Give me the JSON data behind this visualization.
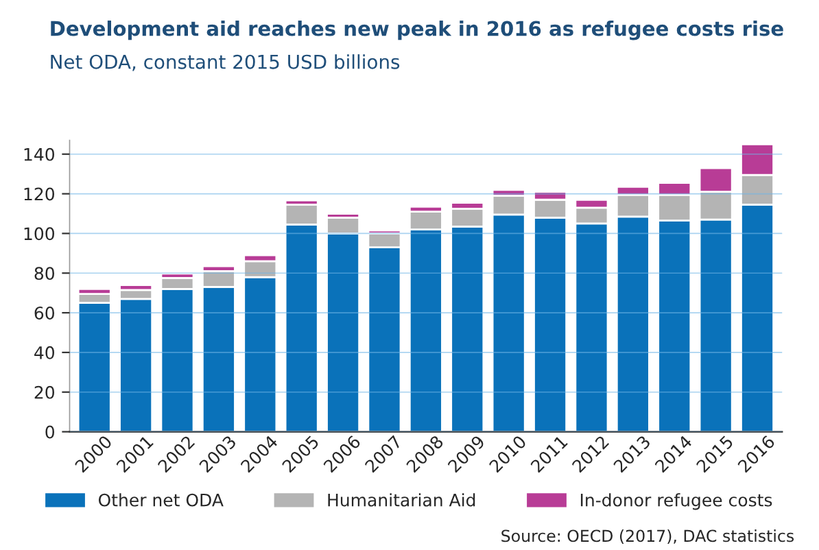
{
  "chart_data": {
    "type": "bar",
    "title": "Development aid reaches new peak in 2016 as refugee costs rise",
    "subtitle": "Net ODA, constant 2015 USD billions",
    "categories": [
      "2000",
      "2001",
      "2002",
      "2003",
      "2004",
      "2005",
      "2006",
      "2007",
      "2008",
      "2009",
      "2010",
      "2011",
      "2012",
      "2013",
      "2014",
      "2015",
      "2016"
    ],
    "stacked": true,
    "series": [
      {
        "name": "Other net ODA",
        "color": "#0a72ba",
        "values": [
          65,
          67,
          72,
          73,
          78,
          104.5,
          100,
          93,
          102,
          103.5,
          109.5,
          108,
          105,
          108.5,
          106.5,
          107,
          114.5
        ]
      },
      {
        "name": "Humanitarian Aid",
        "color": "#b4b4b4",
        "values": [
          4.5,
          4.5,
          5.5,
          8,
          8,
          10,
          8,
          7,
          9,
          9,
          9.5,
          9,
          8,
          11,
          13,
          14,
          15
        ]
      },
      {
        "name": "In-donor refugee costs",
        "color": "#b83c96",
        "values": [
          2.5,
          2.5,
          2.3,
          2.5,
          3,
          2.2,
          2,
          1.5,
          2.5,
          3,
          3,
          4,
          4,
          4,
          6,
          12,
          15.5
        ]
      }
    ],
    "ylim": [
      0,
      147
    ],
    "yticks": [
      0,
      20,
      40,
      60,
      80,
      100,
      120,
      140
    ],
    "grid": "y",
    "legend": "bottom",
    "annotations": [
      "Source: OECD (2017), DAC statistics"
    ]
  }
}
